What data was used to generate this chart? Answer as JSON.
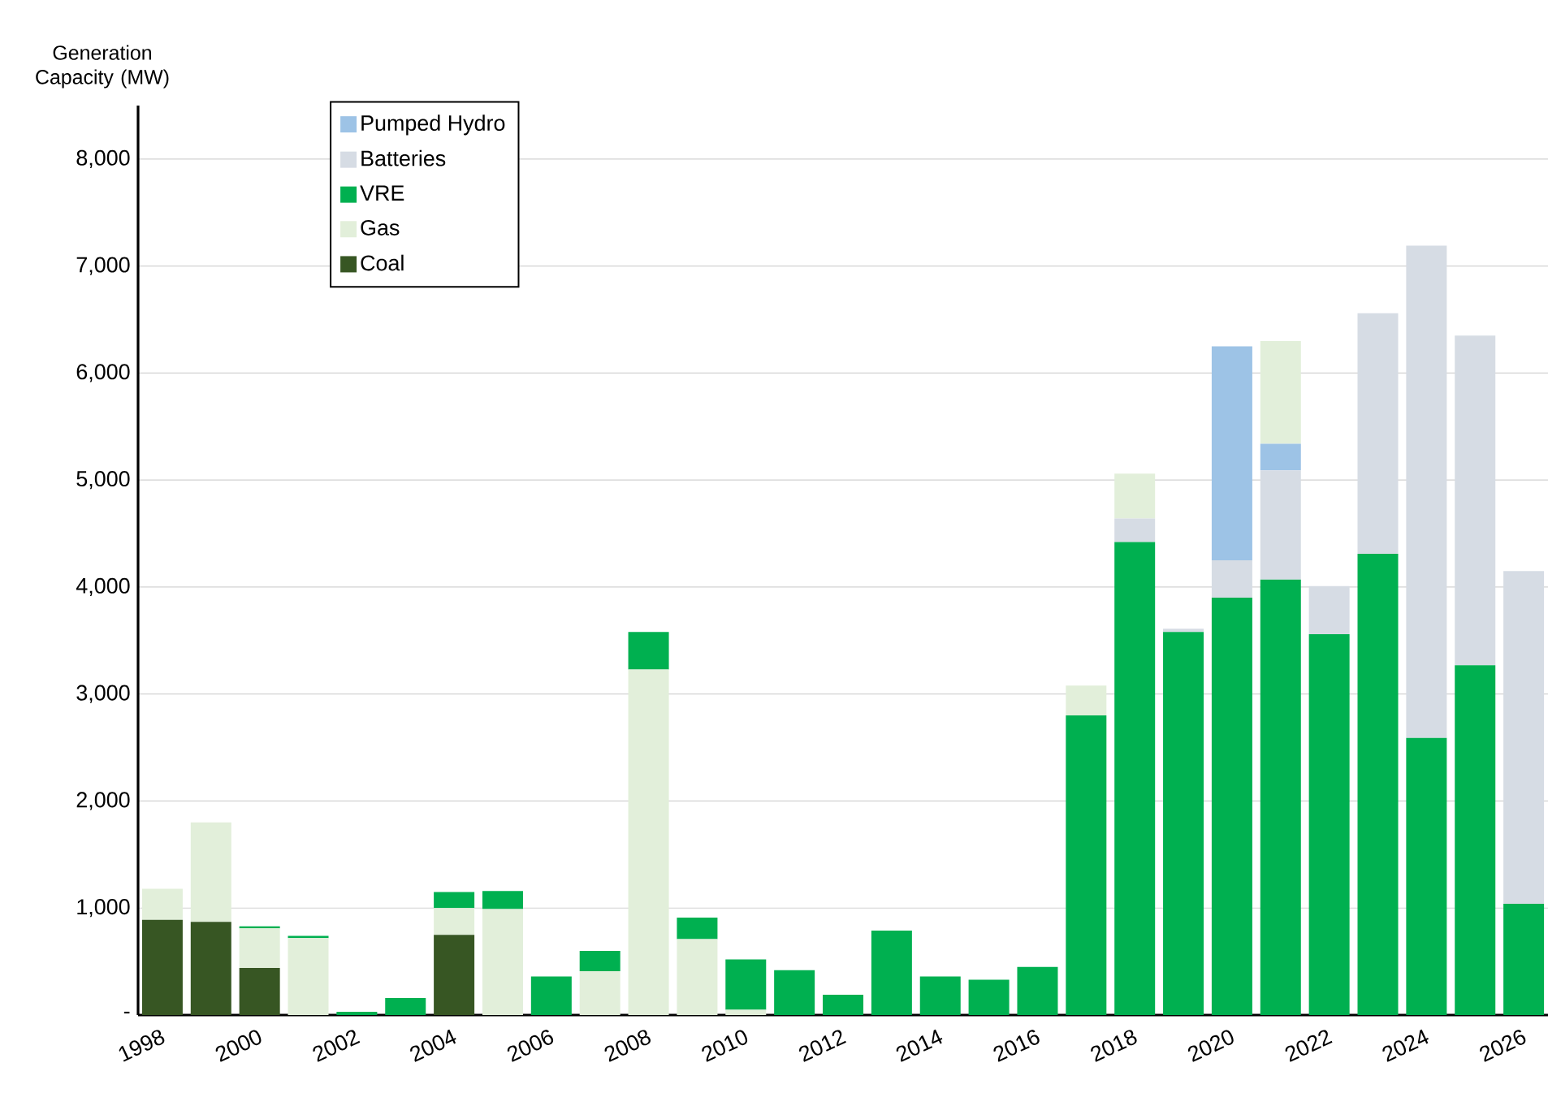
{
  "chart_data": {
    "type": "bar",
    "stacked": true,
    "ylabel": "Generation Capacity (MW)",
    "categories": [
      "1998",
      null,
      "2000",
      null,
      "2002",
      null,
      "2004",
      null,
      "2006",
      null,
      "2008",
      null,
      "2010",
      null,
      "2012",
      null,
      "2014",
      null,
      "2016",
      null,
      "2018",
      null,
      "2020",
      null,
      "2022",
      null,
      "2024",
      null,
      "2026"
    ],
    "series": [
      {
        "name": "Coal",
        "color": "#375623",
        "values": [
          890,
          870,
          440,
          null,
          null,
          null,
          750,
          null,
          null,
          null,
          null,
          null,
          null,
          null,
          null,
          null,
          null,
          null,
          null,
          null,
          null,
          null,
          null,
          null,
          null,
          null,
          null,
          null,
          null
        ]
      },
      {
        "name": "Gas",
        "color": "#e2efda",
        "values": [
          290,
          930,
          370,
          720,
          null,
          null,
          250,
          990,
          null,
          410,
          3230,
          710,
          50,
          null,
          null,
          null,
          null,
          null,
          null,
          null,
          null,
          null,
          null,
          null,
          null,
          null,
          null,
          null,
          null
        ]
      },
      {
        "name": "VRE",
        "color": "#00b050",
        "values": [
          null,
          null,
          20,
          20,
          30,
          160,
          150,
          170,
          360,
          190,
          350,
          200,
          470,
          420,
          190,
          790,
          360,
          330,
          450,
          2800,
          4420,
          3580,
          3900,
          4070,
          3560,
          4310,
          2590,
          3270,
          1040
        ]
      },
      {
        "name": "Batteries",
        "color": "#d6dce4",
        "values": [
          null,
          null,
          null,
          null,
          null,
          null,
          null,
          null,
          null,
          null,
          null,
          null,
          null,
          null,
          null,
          null,
          null,
          null,
          null,
          null,
          220,
          30,
          350,
          1020,
          450,
          2250,
          4600,
          3080,
          3110
        ]
      },
      {
        "name": "Pumped Hydro",
        "color": "#9dc3e6",
        "values": [
          null,
          null,
          null,
          null,
          null,
          null,
          null,
          null,
          null,
          null,
          null,
          null,
          null,
          null,
          null,
          null,
          null,
          null,
          null,
          null,
          null,
          null,
          2000,
          250,
          null,
          null,
          null,
          null,
          null
        ]
      },
      {
        "color": "#e2efda",
        "values": [
          null,
          null,
          null,
          null,
          null,
          null,
          null,
          null,
          null,
          null,
          null,
          null,
          null,
          null,
          null,
          null,
          null,
          null,
          null,
          280,
          420,
          null,
          null,
          960,
          null,
          null,
          null,
          null,
          null
        ]
      }
    ],
    "ylim": [
      0,
      8500
    ],
    "yticks": [
      {
        "value": 0,
        "label": "-"
      },
      {
        "value": 1000,
        "label": "1,000"
      },
      {
        "value": 2000,
        "label": "2,000"
      },
      {
        "value": 3000,
        "label": "3,000"
      },
      {
        "value": 4000,
        "label": "4,000"
      },
      {
        "value": 5000,
        "label": "5,000"
      },
      {
        "value": 6000,
        "label": "6,000"
      },
      {
        "value": 7000,
        "label": "7,000"
      },
      {
        "value": 8000,
        "label": "8,000"
      }
    ],
    "grid": "y",
    "legend": "top left"
  }
}
